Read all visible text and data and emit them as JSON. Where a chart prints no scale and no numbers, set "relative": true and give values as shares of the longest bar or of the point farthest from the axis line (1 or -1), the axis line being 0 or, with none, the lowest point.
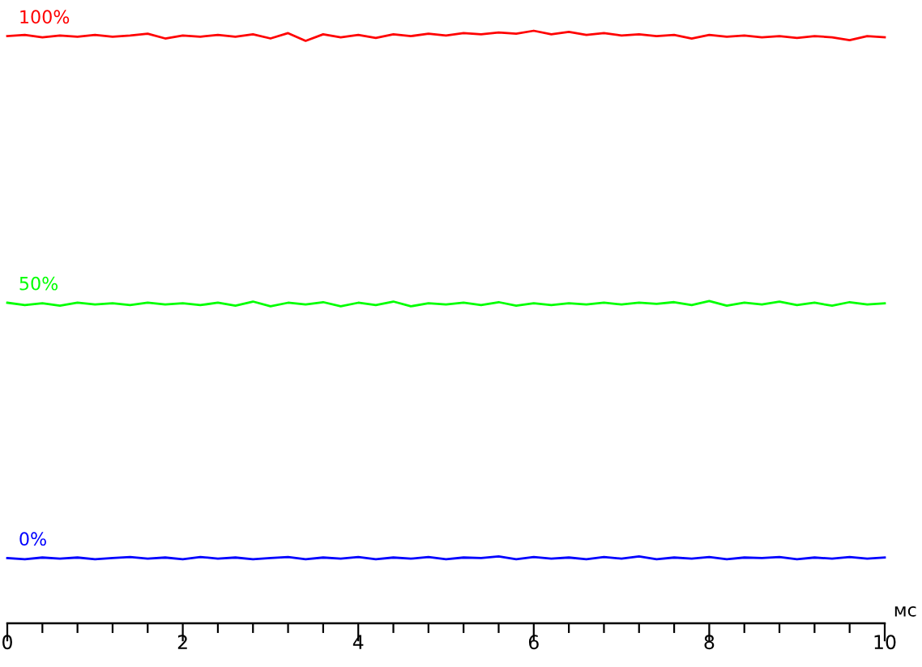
{
  "chart_data": {
    "type": "line",
    "relative": true,
    "xlabel": "мс",
    "x": [
      0,
      0.2,
      0.4,
      0.6,
      0.8,
      1,
      1.2,
      1.4,
      1.6,
      1.8,
      2,
      2.2,
      2.4,
      2.6,
      2.8,
      3,
      3.2,
      3.4,
      3.6,
      3.8,
      4,
      4.2,
      4.4,
      4.6,
      4.8,
      5,
      5.2,
      5.4,
      5.6,
      5.8,
      6,
      6.2,
      6.4,
      6.6,
      6.8,
      7,
      7.2,
      7.4,
      7.6,
      7.8,
      8,
      8.2,
      8.4,
      8.6,
      8.8,
      9,
      9.2,
      9.4,
      9.6,
      9.8,
      10
    ],
    "xlim": [
      0,
      10
    ],
    "xticks": [
      0,
      {
        "value": 0.4,
        "label": null
      },
      {
        "value": 0.8,
        "label": null
      },
      {
        "value": 1.2,
        "label": null
      },
      {
        "value": 1.6,
        "label": null
      },
      2,
      {
        "value": 2.4,
        "label": null
      },
      {
        "value": 2.8,
        "label": null
      },
      {
        "value": 3.2,
        "label": null
      },
      {
        "value": 3.6,
        "label": null
      },
      4,
      {
        "value": 4.4,
        "label": null
      },
      {
        "value": 4.8,
        "label": null
      },
      {
        "value": 5.2,
        "label": null
      },
      {
        "value": 5.6,
        "label": null
      },
      6,
      {
        "value": 6.4,
        "label": null
      },
      {
        "value": 6.8,
        "label": null
      },
      {
        "value": 7.2,
        "label": null
      },
      {
        "value": 7.6,
        "label": null
      },
      8,
      {
        "value": 8.4,
        "label": null
      },
      {
        "value": 8.8,
        "label": null
      },
      {
        "value": 9.2,
        "label": null
      },
      {
        "value": 9.6,
        "label": null
      },
      10
    ],
    "series": [
      {
        "name": "100%",
        "color": "#ff0000",
        "values": [
          0.991,
          0.993,
          0.989,
          0.992,
          0.99,
          0.993,
          0.99,
          0.992,
          0.995,
          0.987,
          0.992,
          0.99,
          0.993,
          0.99,
          0.994,
          0.987,
          0.996,
          0.983,
          0.994,
          0.989,
          0.993,
          0.988,
          0.994,
          0.991,
          0.995,
          0.992,
          0.996,
          0.994,
          0.997,
          0.995,
          1.0,
          0.994,
          0.998,
          0.993,
          0.996,
          0.992,
          0.994,
          0.991,
          0.993,
          0.987,
          0.993,
          0.99,
          0.992,
          0.989,
          0.991,
          0.988,
          0.991,
          0.989,
          0.984,
          0.991,
          0.989
        ]
      },
      {
        "name": "50%",
        "color": "#00ff00",
        "values": [
          0.541,
          0.537,
          0.54,
          0.536,
          0.541,
          0.538,
          0.54,
          0.537,
          0.541,
          0.538,
          0.54,
          0.537,
          0.541,
          0.536,
          0.543,
          0.535,
          0.541,
          0.538,
          0.542,
          0.535,
          0.541,
          0.537,
          0.543,
          0.535,
          0.54,
          0.538,
          0.541,
          0.537,
          0.542,
          0.536,
          0.54,
          0.537,
          0.54,
          0.538,
          0.541,
          0.538,
          0.541,
          0.539,
          0.542,
          0.537,
          0.544,
          0.536,
          0.541,
          0.538,
          0.543,
          0.537,
          0.541,
          0.536,
          0.542,
          0.538,
          0.54
        ]
      },
      {
        "name": "0%",
        "color": "#0000ff",
        "values": [
          0.11,
          0.108,
          0.111,
          0.109,
          0.111,
          0.108,
          0.11,
          0.112,
          0.109,
          0.111,
          0.108,
          0.112,
          0.109,
          0.111,
          0.108,
          0.11,
          0.112,
          0.108,
          0.111,
          0.109,
          0.112,
          0.108,
          0.111,
          0.109,
          0.112,
          0.108,
          0.111,
          0.11,
          0.113,
          0.108,
          0.112,
          0.109,
          0.111,
          0.108,
          0.112,
          0.109,
          0.113,
          0.108,
          0.111,
          0.109,
          0.112,
          0.108,
          0.111,
          0.11,
          0.112,
          0.108,
          0.111,
          0.109,
          0.112,
          0.109,
          0.111
        ]
      }
    ]
  }
}
